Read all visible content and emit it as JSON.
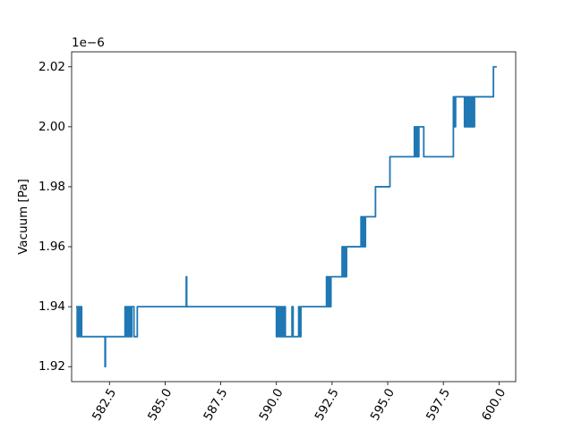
{
  "chart_data": {
    "type": "line",
    "title": "",
    "xlabel": "",
    "ylabel": "Vacuum [Pa]",
    "y_offset_label": "1e−6",
    "xlim": [
      580.8,
      600.75
    ],
    "ylim": [
      1.915,
      2.025
    ],
    "grid": false,
    "x_ticks": [
      582.5,
      585.0,
      587.5,
      590.0,
      592.5,
      595.0,
      597.5,
      600.0
    ],
    "x_tick_labels": [
      "582.5",
      "585.0",
      "587.5",
      "590.0",
      "592.5",
      "595.0",
      "597.5",
      "600.0"
    ],
    "x_tick_rotation": 60,
    "y_ticks": [
      1.92,
      1.94,
      1.96,
      1.98,
      2.0,
      2.02
    ],
    "y_tick_labels": [
      "1.92",
      "1.94",
      "1.96",
      "1.98",
      "2.00",
      "2.02"
    ],
    "line_color": "#1f77b4",
    "series": [
      {
        "x": [
          581.0,
          581.05,
          581.05,
          581.1,
          581.1,
          581.15,
          581.15,
          581.2,
          581.2,
          581.25,
          581.25,
          581.3,
          581.3,
          582.3,
          582.3,
          582.32,
          582.32,
          583.2,
          583.2,
          583.25,
          583.25,
          583.3,
          583.3,
          583.35,
          583.35,
          583.4,
          583.4,
          583.45,
          583.45,
          583.5,
          583.5,
          583.55,
          583.55,
          583.6,
          583.6,
          583.75,
          583.75,
          583.8,
          583.8,
          585.95,
          585.95,
          585.97,
          585.97,
          590.0,
          590.0,
          590.05,
          590.05,
          590.1,
          590.1,
          590.15,
          590.15,
          590.2,
          590.2,
          590.25,
          590.25,
          590.3,
          590.3,
          590.35,
          590.35,
          590.4,
          590.4,
          590.45,
          590.45,
          590.7,
          590.7,
          590.75,
          590.75,
          591.0,
          591.0,
          591.05,
          591.05,
          591.1,
          591.1,
          591.15,
          591.15,
          591.2,
          591.2,
          592.25,
          592.25,
          592.3,
          592.3,
          592.35,
          592.35,
          592.4,
          592.4,
          592.45,
          592.45,
          592.95,
          592.95,
          593.0,
          593.0,
          593.05,
          593.05,
          593.1,
          593.1,
          593.15,
          593.15,
          593.2,
          593.2,
          593.8,
          593.8,
          593.85,
          593.85,
          593.9,
          593.9,
          593.95,
          593.95,
          594.0,
          594.0,
          594.45,
          594.45,
          595.1,
          595.1,
          596.2,
          596.2,
          596.25,
          596.25,
          596.3,
          596.3,
          596.35,
          596.35,
          596.4,
          596.4,
          596.6,
          596.6,
          596.62,
          596.62,
          597.95,
          597.95,
          598.0,
          598.0,
          598.05,
          598.05,
          598.1,
          598.1,
          598.45,
          598.45,
          598.5,
          598.5,
          598.55,
          598.55,
          598.6,
          598.6,
          598.65,
          598.65,
          598.7,
          598.7,
          598.75,
          598.75,
          598.8,
          598.8,
          598.85,
          598.85,
          598.9,
          598.9,
          599.75,
          599.75,
          599.9
        ],
        "y": [
          1.94,
          1.94,
          1.93,
          1.93,
          1.94,
          1.94,
          1.93,
          1.93,
          1.94,
          1.94,
          1.93,
          1.93,
          1.93,
          1.93,
          1.92,
          1.92,
          1.93,
          1.93,
          1.94,
          1.94,
          1.93,
          1.93,
          1.94,
          1.94,
          1.93,
          1.93,
          1.94,
          1.94,
          1.93,
          1.93,
          1.94,
          1.94,
          1.94,
          1.94,
          1.93,
          1.93,
          1.94,
          1.94,
          1.94,
          1.94,
          1.95,
          1.95,
          1.94,
          1.94,
          1.93,
          1.93,
          1.94,
          1.94,
          1.93,
          1.93,
          1.94,
          1.94,
          1.93,
          1.93,
          1.94,
          1.94,
          1.93,
          1.93,
          1.94,
          1.94,
          1.93,
          1.93,
          1.93,
          1.93,
          1.94,
          1.94,
          1.93,
          1.93,
          1.94,
          1.94,
          1.93,
          1.93,
          1.94,
          1.94,
          1.94,
          1.94,
          1.94,
          1.94,
          1.95,
          1.95,
          1.94,
          1.94,
          1.95,
          1.95,
          1.94,
          1.94,
          1.95,
          1.95,
          1.96,
          1.96,
          1.95,
          1.95,
          1.96,
          1.96,
          1.95,
          1.95,
          1.96,
          1.96,
          1.96,
          1.96,
          1.97,
          1.97,
          1.96,
          1.96,
          1.97,
          1.97,
          1.96,
          1.96,
          1.97,
          1.97,
          1.98,
          1.98,
          1.99,
          1.99,
          2.0,
          2.0,
          1.99,
          1.99,
          2.0,
          2.0,
          1.99,
          1.99,
          2.0,
          2.0,
          2.0,
          2.0,
          1.99,
          1.99,
          2.01,
          2.01,
          2.0,
          2.0,
          2.01,
          2.01,
          2.01,
          2.01,
          2.0,
          2.0,
          2.01,
          2.01,
          2.0,
          2.0,
          2.01,
          2.01,
          2.0,
          2.0,
          2.01,
          2.01,
          2.0,
          2.0,
          2.01,
          2.01,
          2.0,
          2.0,
          2.01,
          2.01,
          2.02,
          2.02
        ]
      }
    ]
  }
}
